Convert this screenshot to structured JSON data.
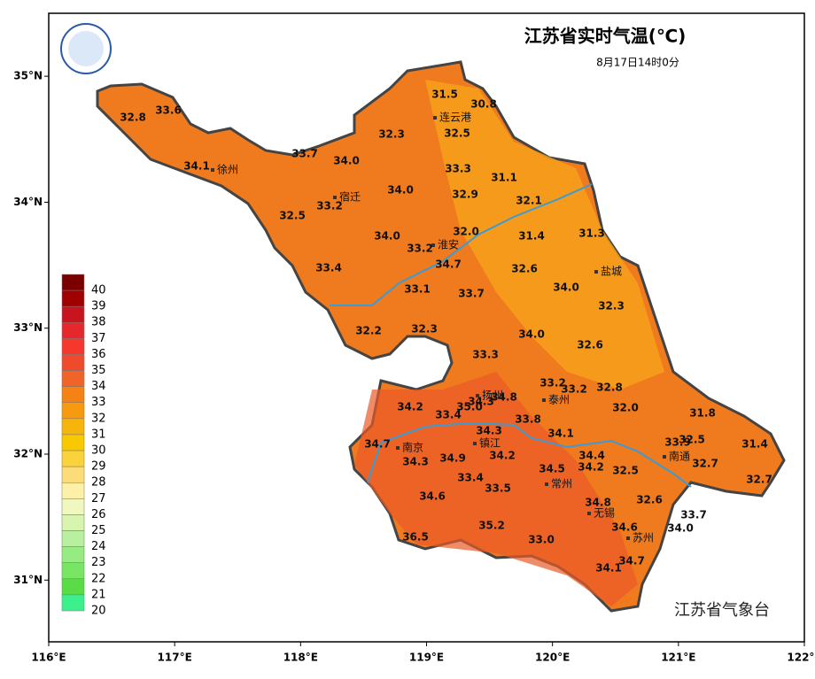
{
  "header": {
    "title": "江苏省实时气温(℃)",
    "subtitle": "8月17日14时0分"
  },
  "map": {
    "lonlim": [
      116,
      122
    ],
    "latlim": [
      30.51,
      35.5
    ],
    "lonticks": [
      {
        "value": 116,
        "label": "116°E"
      },
      {
        "value": 117,
        "label": "117°E"
      },
      {
        "value": 118,
        "label": "118°E"
      },
      {
        "value": 119,
        "label": "119°E"
      },
      {
        "value": 120,
        "label": "120°E"
      },
      {
        "value": 121,
        "label": "121°E"
      },
      {
        "value": 122,
        "label": "122°E"
      }
    ],
    "latticks": [
      {
        "value": 35,
        "label": "35°N"
      },
      {
        "value": 34,
        "label": "34°N"
      },
      {
        "value": 33,
        "label": "33°N"
      },
      {
        "value": 32,
        "label": "32°N"
      },
      {
        "value": 31,
        "label": "31°N"
      }
    ],
    "cities": [
      "徐州",
      "宿迁",
      "连云港",
      "淮安",
      "盐城",
      "扬州",
      "泰州",
      "南京",
      "镇江",
      "南通",
      "常州",
      "无锡",
      "苏州"
    ],
    "readings": [
      32.8,
      33.6,
      31.5,
      30.8,
      32.3,
      32.5,
      33.7,
      {
        "value": 34,
        "label": "34.0"
      },
      34.1,
      33.3,
      31.1,
      {
        "value": 34,
        "label": "34.0"
      },
      32.9,
      33.2,
      32.1,
      32.5,
      {
        "value": 32,
        "label": "32.0"
      },
      31.4,
      31.3,
      {
        "value": 34,
        "label": "34.0"
      },
      33.2,
      34.7,
      32.6,
      33.4,
      {
        "value": 34,
        "label": "34.0"
      },
      33.1,
      33.7,
      32.3,
      32.2,
      32.3,
      {
        "value": 34,
        "label": "34.0"
      },
      32.6,
      33.3,
      33.2,
      33.2,
      32.8,
      34.3,
      34.8,
      {
        "value": 35,
        "label": "35.0"
      },
      34.2,
      33.4,
      {
        "value": 32,
        "label": "32.0"
      },
      31.8,
      33.8,
      34.3,
      34.1,
      33.9,
      32.5,
      31.4,
      34.7,
      34.4,
      34.2,
      34.3,
      34.9,
      34.2,
      34.5,
      32.5,
      32.7,
      32.7,
      33.4,
      33.5,
      34.6,
      32.6,
      34.8,
      33.7,
      34.6,
      35.2,
      {
        "value": 34,
        "label": "34.0"
      },
      {
        "value": 33,
        "label": "33.0"
      },
      36.5,
      34.7,
      34.1
    ]
  },
  "legend": {
    "values": [
      40,
      39,
      38,
      37,
      36,
      35,
      34,
      33,
      32,
      31,
      30,
      29,
      28,
      27,
      26,
      25,
      24,
      23,
      22,
      21,
      20
    ],
    "colors": [
      "#7a0000",
      "#a00000",
      "#c8141e",
      "#e6282d",
      "#f5372d",
      "#f04a2d",
      "#f06428",
      "#f58214",
      "#f79a0f",
      "#f7b40a",
      "#f8c800",
      "#fad23c",
      "#fcdc78",
      "#fff0a8",
      "#f0f8c0",
      "#d8f5b0",
      "#b9f0a0",
      "#96eb82",
      "#78e664",
      "#5adc46",
      "#3cf08c"
    ]
  },
  "footer": {
    "agency": "江苏省气象台"
  }
}
